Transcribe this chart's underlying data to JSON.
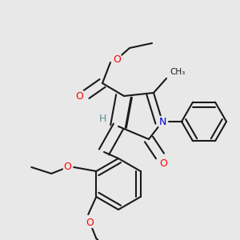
{
  "bg_color": "#e8e8e8",
  "bond_color": "#1a1a1a",
  "bond_width": 1.5,
  "dbo": 0.015,
  "atom_colors": {
    "O": "#ff0000",
    "N": "#0000cc",
    "C": "#1a1a1a",
    "H": "#5a9090"
  }
}
